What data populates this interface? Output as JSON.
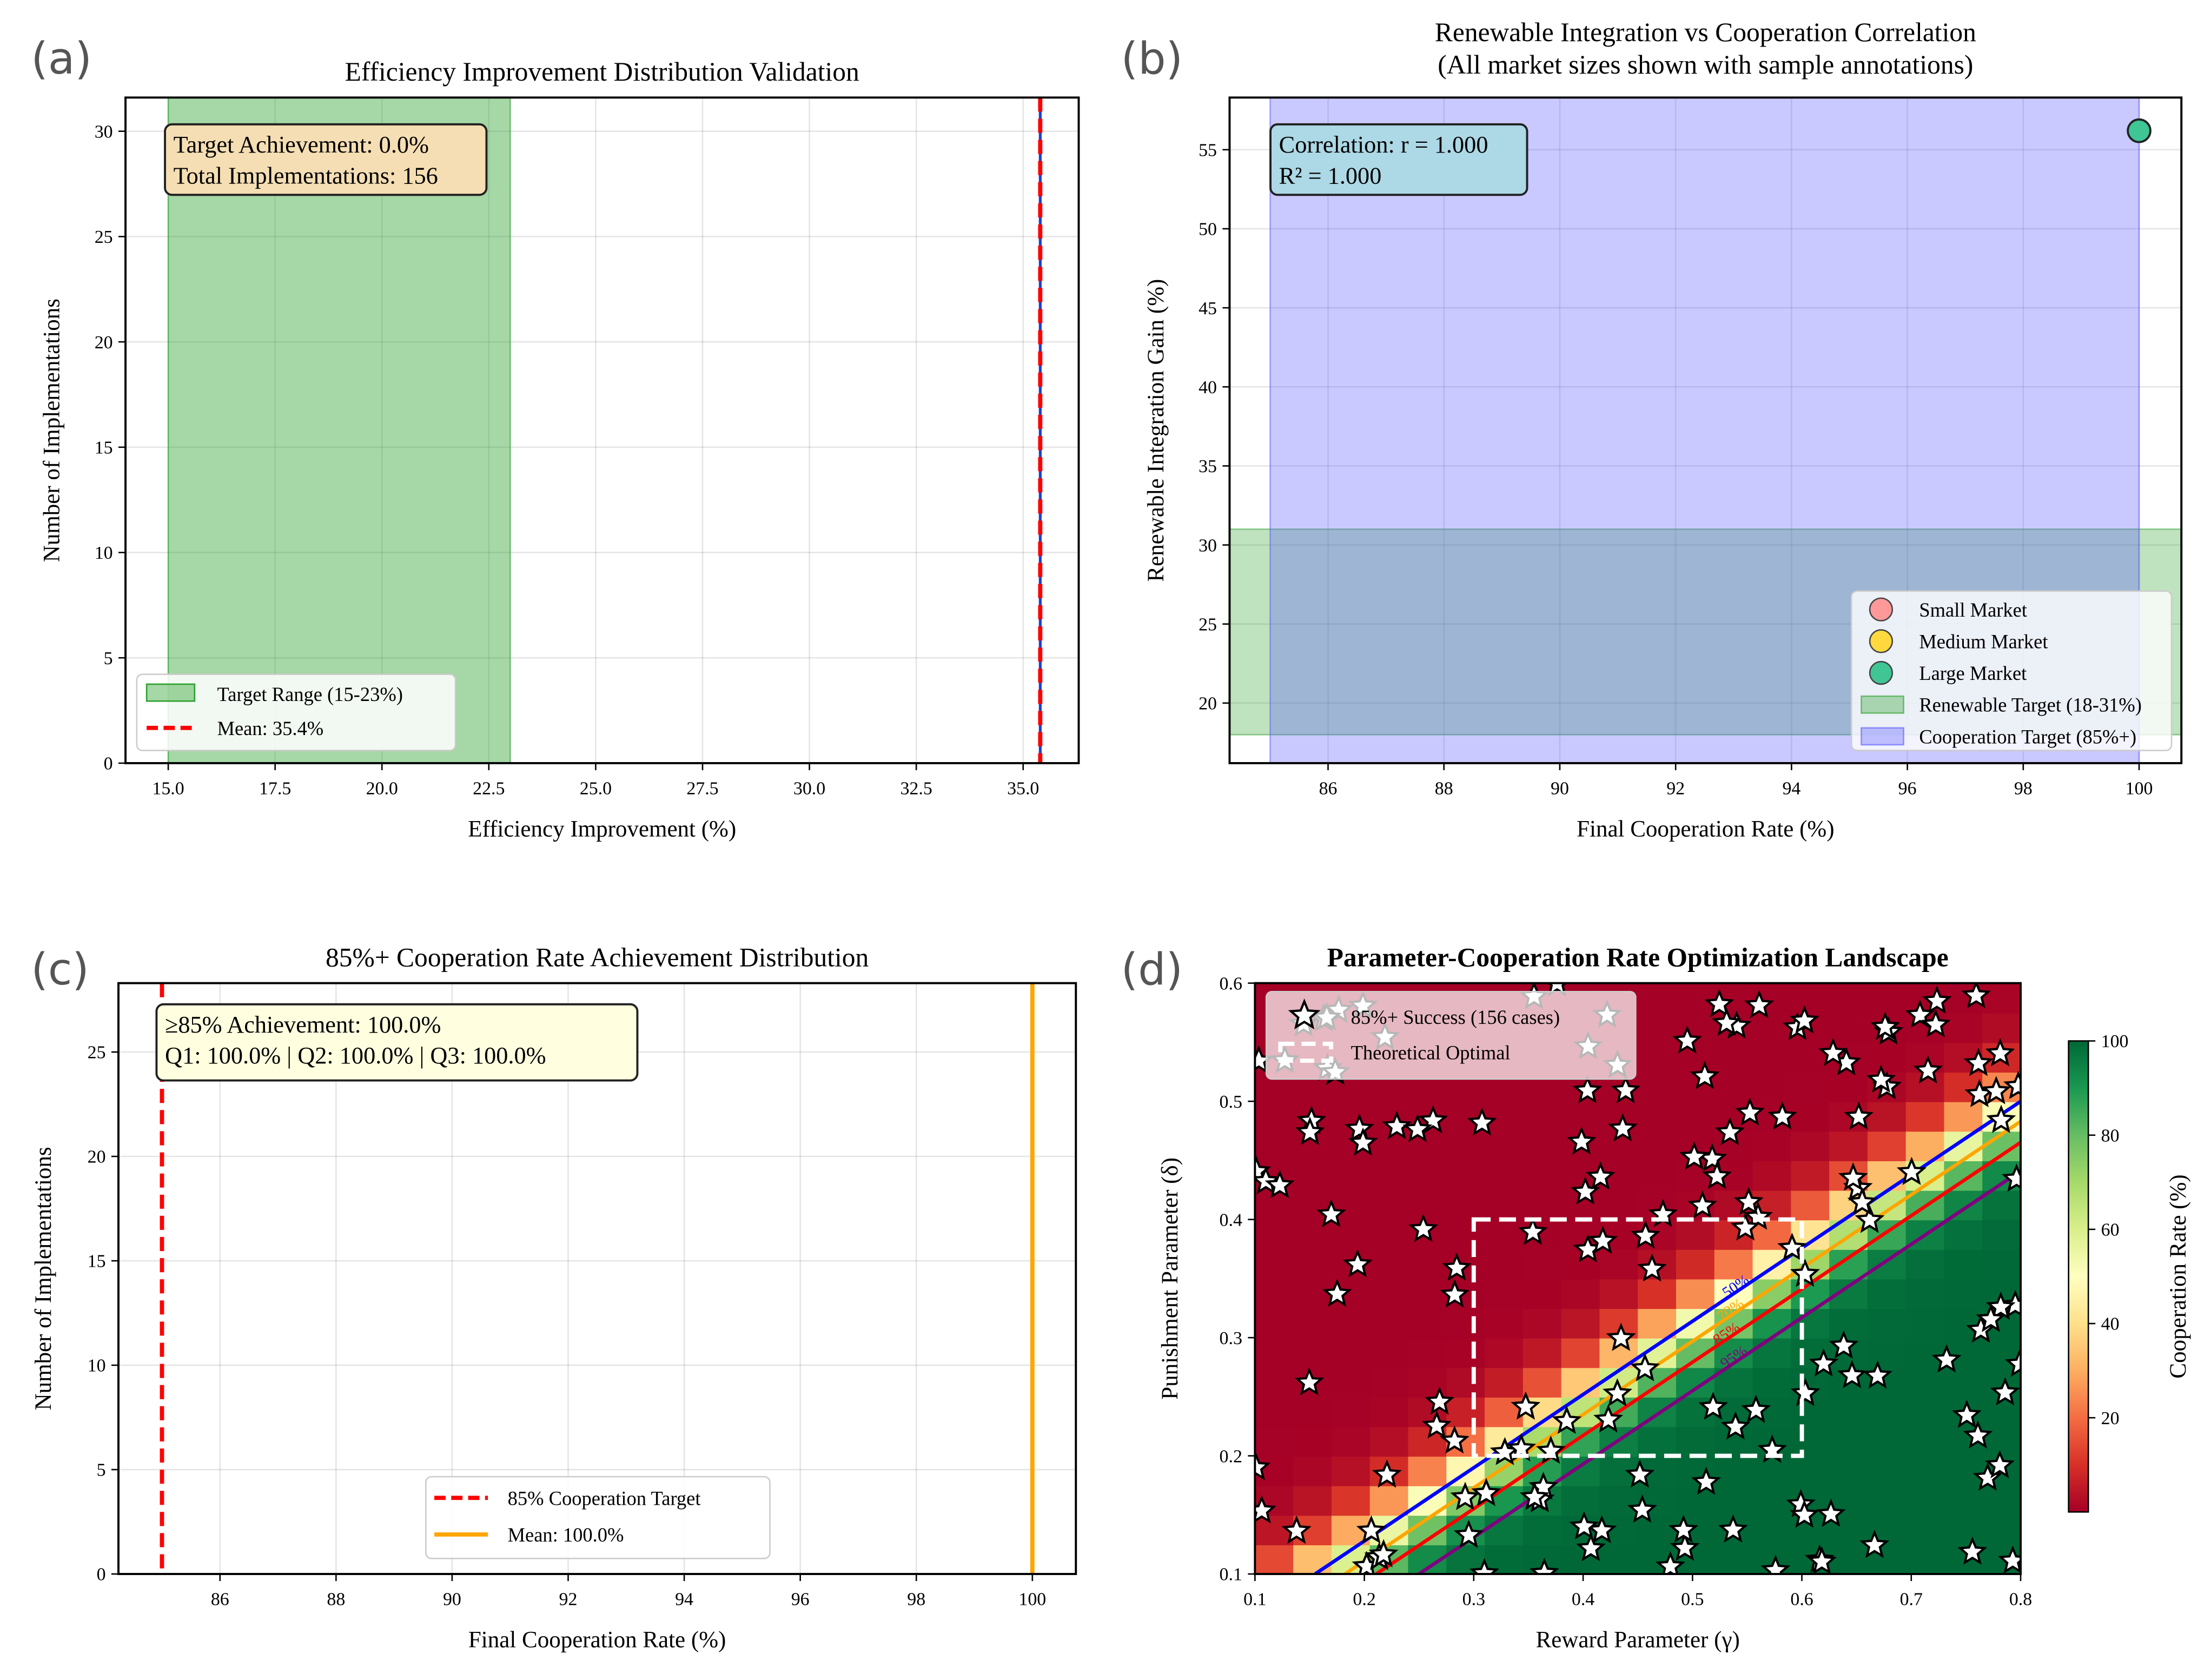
{
  "chart_data": [
    {
      "panel": "(a)",
      "type": "bar",
      "title": "Efficiency Improvement Distribution Validation",
      "xlabel": "Efficiency Improvement (%)",
      "ylabel": "Number of Implementations",
      "xlim": [
        14.0,
        36.3
      ],
      "ylim": [
        0,
        31.6
      ],
      "xticks": [
        "15.0",
        "17.5",
        "20.0",
        "22.5",
        "25.0",
        "27.5",
        "30.0",
        "32.5",
        "35.0"
      ],
      "xtick_values": [
        15,
        17.5,
        20,
        22.5,
        25,
        27.5,
        30,
        32.5,
        35
      ],
      "yticks": [
        0,
        5,
        10,
        15,
        20,
        25,
        30
      ],
      "target_range": [
        15,
        23
      ],
      "mean": 35.4,
      "annotation": [
        "Target Achievement: 0.0%",
        "Total Implementations: 156"
      ],
      "legend": [
        "Target Range (15-23%)",
        "Mean: 35.4%"
      ],
      "colors": {
        "target": "#2ca02c",
        "mean": "#ff0000",
        "hist": "#1f3fcf",
        "annotation_bg": "#f5deb3"
      }
    },
    {
      "panel": "(b)",
      "type": "scatter",
      "title": [
        "Renewable Integration vs Cooperation Correlation",
        "(All market sizes shown with sample annotations)"
      ],
      "xlabel": "Final Cooperation Rate (%)",
      "ylabel": "Renewable Integration Gain (%)",
      "xlim": [
        84.3,
        100.73
      ],
      "ylim": [
        16.2,
        58.3
      ],
      "xticks": [
        86,
        88,
        90,
        92,
        94,
        96,
        98,
        100
      ],
      "yticks": [
        20,
        25,
        30,
        35,
        40,
        45,
        50,
        55
      ],
      "points": [
        {
          "series": "Large Market",
          "x": 100,
          "y": 56.2
        }
      ],
      "renewable_target": [
        18,
        31
      ],
      "cooperation_target": [
        85,
        100
      ],
      "annotation": [
        "Correlation: r = 1.000",
        "R² = 1.000"
      ],
      "legend": [
        {
          "label": "Small Market",
          "color": "#ff9999"
        },
        {
          "label": "Medium Market",
          "color": "#ffd93d"
        },
        {
          "label": "Large Market",
          "color": "#40c595"
        },
        {
          "label": "Renewable Target (18-31%)",
          "color": "#2ca02c"
        },
        {
          "label": "Cooperation Target (85%+)",
          "color": "#5a5aff"
        }
      ],
      "legend_placement": "lower-right"
    },
    {
      "panel": "(c)",
      "type": "bar",
      "title": "85%+ Cooperation Rate Achievement Distribution",
      "xlabel": "Final Cooperation Rate (%)",
      "ylabel": "Number of Implementations",
      "xlim": [
        84.25,
        100.75
      ],
      "ylim": [
        0,
        28.3
      ],
      "xticks": [
        86,
        88,
        90,
        92,
        94,
        96,
        98,
        100
      ],
      "yticks": [
        0,
        5,
        10,
        15,
        20,
        25
      ],
      "target": 85,
      "mean": 100.0,
      "annotation": [
        "≥85% Achievement: 100.0%",
        "Q1: 100.0% | Q2: 100.0% | Q3: 100.0%"
      ],
      "legend": [
        "85% Cooperation Target",
        "Mean: 100.0%"
      ],
      "colors": {
        "target": "#ff0000",
        "mean": "#ffa500",
        "annotation_bg": "#ffffe0"
      }
    },
    {
      "panel": "(d)",
      "type": "heatmap",
      "title": "Parameter-Cooperation Rate Optimization Landscape",
      "xlabel": "Reward Parameter (γ)",
      "ylabel": "Punishment Parameter (δ)",
      "xlim": [
        0.1,
        0.8
      ],
      "ylim": [
        0.1,
        0.6
      ],
      "xticks": [
        "0.1",
        "0.2",
        "0.3",
        "0.4",
        "0.5",
        "0.6",
        "0.7",
        "0.8"
      ],
      "yticks": [
        "0.1",
        "0.2",
        "0.3",
        "0.4",
        "0.5",
        "0.6"
      ],
      "grid_size": 20,
      "contours": [
        {
          "level": 50,
          "label": "50%",
          "color": "#0000ff"
        },
        {
          "level": 70,
          "label": "70%",
          "color": "#ffa500"
        },
        {
          "level": 85,
          "label": "85%",
          "color": "#ff0000"
        },
        {
          "level": 95,
          "label": "95%",
          "color": "#800080"
        }
      ],
      "success_cases": 156,
      "optimal_region": {
        "gamma": [
          0.3,
          0.6
        ],
        "delta": [
          0.2,
          0.4
        ]
      },
      "legend": [
        "85%+ Success (156 cases)",
        "Theoretical Optimal"
      ],
      "colorbar": {
        "label": "Cooperation Rate (%)",
        "ticks": [
          20,
          40,
          60,
          80,
          100
        ],
        "range": [
          0,
          100
        ]
      }
    }
  ]
}
